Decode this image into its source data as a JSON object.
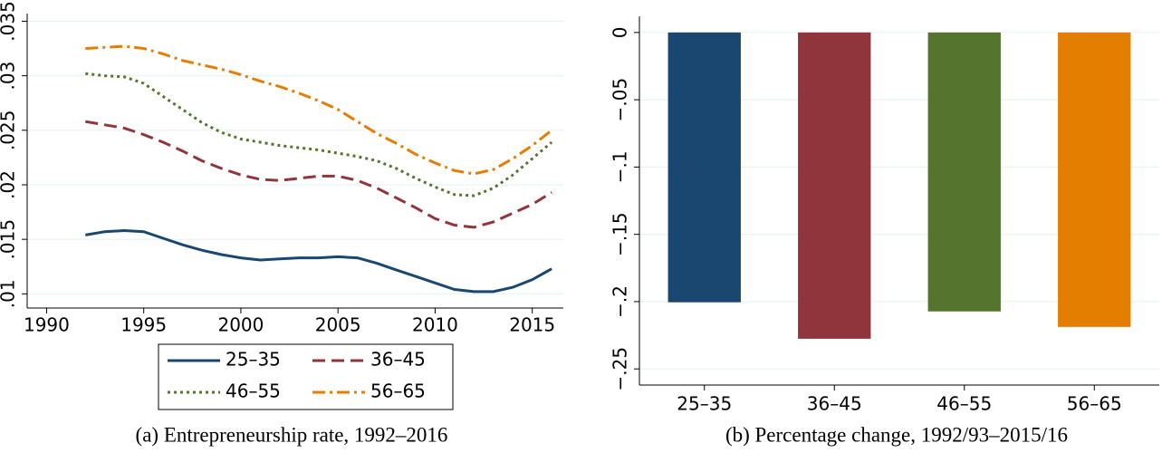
{
  "chart_data": [
    {
      "type": "line",
      "title": "(a) Entrepreneurship rate, 1992–2016",
      "x": [
        1992,
        1993,
        1994,
        1995,
        1996,
        1997,
        1998,
        1999,
        2000,
        2001,
        2002,
        2003,
        2004,
        2005,
        2006,
        2007,
        2008,
        2009,
        2010,
        2011,
        2012,
        2013,
        2014,
        2015,
        2016
      ],
      "series": [
        {
          "name": "25–35",
          "color": "#1a476f",
          "dash": "solid",
          "values": [
            0.0154,
            0.0157,
            0.0158,
            0.0157,
            0.0151,
            0.0145,
            0.014,
            0.0136,
            0.0133,
            0.0131,
            0.0132,
            0.0133,
            0.0133,
            0.0134,
            0.0133,
            0.0128,
            0.0122,
            0.0116,
            0.011,
            0.0104,
            0.0102,
            0.0102,
            0.0106,
            0.0113,
            0.0123
          ]
        },
        {
          "name": "36–45",
          "color": "#90353b",
          "dash": "dashed",
          "values": [
            0.0258,
            0.0255,
            0.0252,
            0.0246,
            0.0239,
            0.0231,
            0.0222,
            0.0215,
            0.0209,
            0.0205,
            0.0204,
            0.0206,
            0.0208,
            0.0208,
            0.0204,
            0.0197,
            0.0188,
            0.0179,
            0.0169,
            0.0163,
            0.0161,
            0.0166,
            0.0174,
            0.0182,
            0.0193
          ]
        },
        {
          "name": "46–55",
          "color": "#55752f",
          "dash": "dotted",
          "values": [
            0.0302,
            0.03,
            0.0299,
            0.0293,
            0.0281,
            0.0269,
            0.0257,
            0.0248,
            0.0242,
            0.0239,
            0.0236,
            0.0234,
            0.0232,
            0.0229,
            0.0226,
            0.0222,
            0.0215,
            0.0206,
            0.0198,
            0.0191,
            0.019,
            0.0197,
            0.0209,
            0.0224,
            0.0239
          ]
        },
        {
          "name": "56–65",
          "color": "#e37e00",
          "dash": "dashdot",
          "values": [
            0.0325,
            0.0326,
            0.0327,
            0.0325,
            0.032,
            0.0314,
            0.031,
            0.0306,
            0.0301,
            0.0295,
            0.029,
            0.0284,
            0.0277,
            0.0269,
            0.0258,
            0.0247,
            0.0238,
            0.0228,
            0.022,
            0.0213,
            0.021,
            0.0214,
            0.0224,
            0.0236,
            0.025
          ]
        }
      ],
      "xlim": [
        1989,
        2016.6
      ],
      "xticks": [
        1990,
        1995,
        2000,
        2005,
        2010,
        2015
      ],
      "ylim": [
        0.0087,
        0.0357
      ],
      "yticks": [
        {
          "value": 0.01,
          "label": ".01"
        },
        {
          "value": 0.015,
          "label": ".015"
        },
        {
          "value": 0.02,
          "label": ".02"
        },
        {
          "value": 0.025,
          "label": ".025"
        },
        {
          "value": 0.03,
          "label": ".03"
        },
        {
          "value": 0.035,
          "label": ".035"
        }
      ],
      "grid": true,
      "legend": "below"
    },
    {
      "type": "bar",
      "title": "(b) Percentage change, 1992/93–2015/16",
      "categories": [
        "25–35",
        "36–45",
        "46–55",
        "56–65"
      ],
      "values": [
        -0.2005,
        -0.2276,
        -0.2073,
        -0.2188
      ],
      "colors": [
        "#1a476f",
        "#90353b",
        "#55752f",
        "#e37e00"
      ],
      "ylim": [
        -0.262,
        0.012
      ],
      "yticks": [
        {
          "value": 0,
          "label": "0"
        },
        {
          "value": -0.05,
          "label": "−.05"
        },
        {
          "value": -0.1,
          "label": "−.1"
        },
        {
          "value": -0.15,
          "label": "−.15"
        },
        {
          "value": -0.2,
          "label": "−.2"
        },
        {
          "value": -0.25,
          "label": "−.25"
        }
      ],
      "grid": true
    }
  ]
}
